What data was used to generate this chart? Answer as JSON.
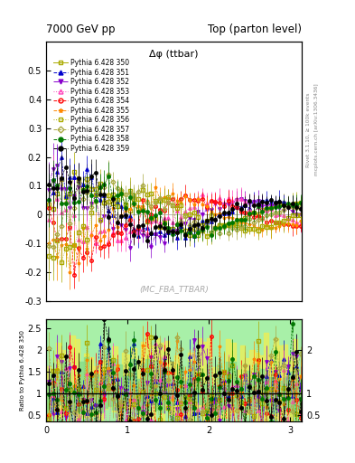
{
  "title_left": "7000 GeV pp",
  "title_right": "Top (parton level)",
  "plot_label": "Δφ (ttbar)",
  "mc_label": "(MC_FBA_TTBAR)",
  "rivet_label": "Rivet 3.1.10, ≥ 100k events",
  "mcplots_label": "mcplots.cern.ch [arXiv:1306.3436]",
  "ratio_ylabel": "Ratio to Pythia 6.428 350",
  "series": [
    {
      "label": "Pythia 6.428 350",
      "color": "#aaaa00",
      "marker": "s",
      "ls": "-",
      "filled": false
    },
    {
      "label": "Pythia 6.428 351",
      "color": "#0000cc",
      "marker": "^",
      "ls": "--",
      "filled": true
    },
    {
      "label": "Pythia 6.428 352",
      "color": "#8800cc",
      "marker": "v",
      "ls": "-.",
      "filled": true
    },
    {
      "label": "Pythia 6.428 353",
      "color": "#ff44bb",
      "marker": "^",
      "ls": ":",
      "filled": false
    },
    {
      "label": "Pythia 6.428 354",
      "color": "#ff0000",
      "marker": "o",
      "ls": "--",
      "filled": false
    },
    {
      "label": "Pythia 6.428 355",
      "color": "#ff8800",
      "marker": "*",
      "ls": "--",
      "filled": true
    },
    {
      "label": "Pythia 6.428 356",
      "color": "#aaaa00",
      "marker": "s",
      "ls": ":",
      "filled": false
    },
    {
      "label": "Pythia 6.428 357",
      "color": "#aaaa44",
      "marker": "D",
      "ls": "--",
      "filled": false
    },
    {
      "label": "Pythia 6.428 358",
      "color": "#007700",
      "marker": "o",
      "ls": "--",
      "filled": true
    },
    {
      "label": "Pythia 6.428 359",
      "color": "#000000",
      "marker": "o",
      "ls": "--",
      "filled": true
    }
  ],
  "xlim": [
    0,
    3.14159
  ],
  "ylim_main": [
    -0.3,
    0.6
  ],
  "ylim_ratio": [
    0.35,
    2.7
  ],
  "yticks_main": [
    -0.3,
    -0.2,
    -0.1,
    0.0,
    0.1,
    0.2,
    0.3,
    0.4,
    0.5
  ],
  "yticks_ratio": [
    0.5,
    1.0,
    1.5,
    2.0,
    2.5
  ],
  "xticks": [
    0,
    1,
    2,
    3
  ],
  "n_points": 60,
  "seed": 42
}
